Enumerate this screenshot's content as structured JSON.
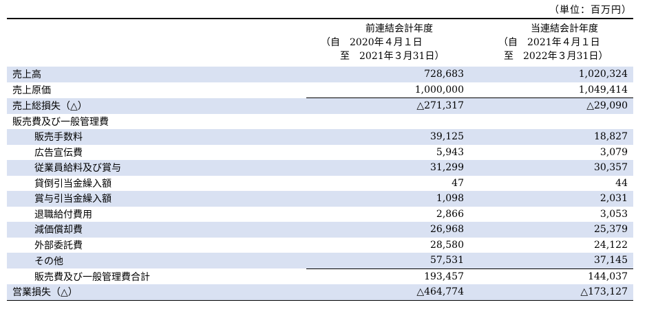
{
  "unit_note": "（単位：百万円）",
  "columns": {
    "prev": {
      "title": "前連結会計年度",
      "from": "（自　2020年４月１日",
      "to": "至　2021年３月31日）"
    },
    "cur": {
      "title": "当連結会計年度",
      "from": "（自　2021年４月１日",
      "to": "至　2022年３月31日）"
    }
  },
  "rows": [
    {
      "label": "売上高",
      "prev": "728,683",
      "cur": "1,020,324"
    },
    {
      "label": "売上原価",
      "prev": "1,000,000",
      "cur": "1,049,414"
    },
    {
      "label": "売上総損失（△）",
      "prev": "△271,317",
      "cur": "△29,090"
    },
    {
      "label": "販売費及び一般管理費",
      "prev": "",
      "cur": ""
    },
    {
      "label": "販売手数料",
      "prev": "39,125",
      "cur": "18,827"
    },
    {
      "label": "広告宣伝費",
      "prev": "5,943",
      "cur": "3,079"
    },
    {
      "label": "従業員給料及び賞与",
      "prev": "31,299",
      "cur": "30,357"
    },
    {
      "label": "貸倒引当金繰入額",
      "prev": "47",
      "cur": "44"
    },
    {
      "label": "賞与引当金繰入額",
      "prev": "1,098",
      "cur": "2,031"
    },
    {
      "label": "退職給付費用",
      "prev": "2,866",
      "cur": "3,053"
    },
    {
      "label": "減価償却費",
      "prev": "26,968",
      "cur": "25,379"
    },
    {
      "label": "外部委託費",
      "prev": "28,580",
      "cur": "24,122"
    },
    {
      "label": "その他",
      "prev": "57,531",
      "cur": "37,145"
    },
    {
      "label": "販売費及び一般管理費合計",
      "prev": "193,457",
      "cur": "144,037"
    },
    {
      "label": "営業損失（△）",
      "prev": "△464,774",
      "cur": "△173,127"
    }
  ],
  "colors": {
    "row_shade": "#d9e1f2"
  }
}
